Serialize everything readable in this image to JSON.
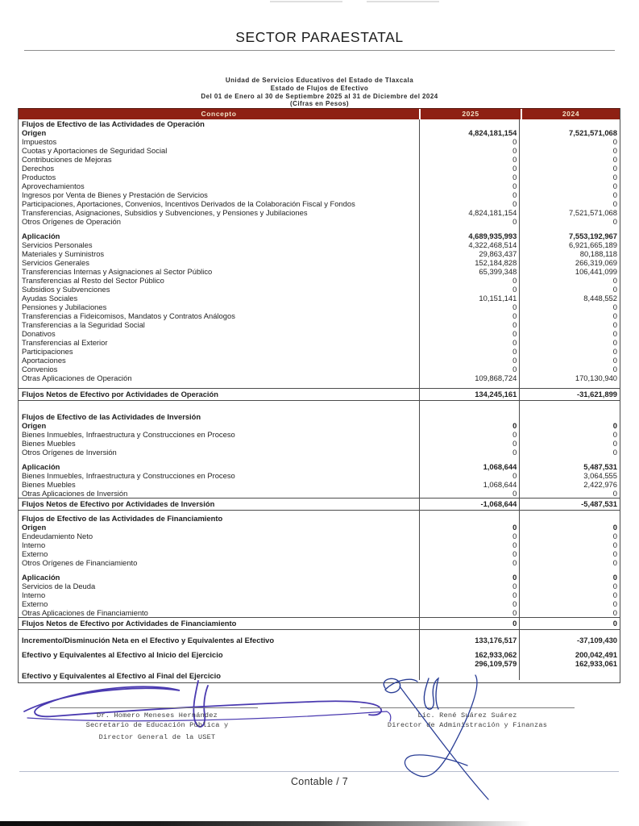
{
  "page": {
    "title": "SECTOR PARAESTATAL",
    "footer": "Contable / 7"
  },
  "report": {
    "entity": "Unidad de Servicios Educativos del Estado de Tlaxcala",
    "statement": "Estado de Flujos de Efectivo",
    "period": "Del 01 de Enero al 30 de Septiembre 2025 al 31 de Diciembre del 2024",
    "units": "(Cifras en Pesos)"
  },
  "table": {
    "headers": {
      "concept": "Concepto",
      "year1": "2025",
      "year2": "2024"
    },
    "header_bg": "#8e2014",
    "header_text_color": "#f2e4c8",
    "rows": [
      {
        "style": "section",
        "label": "Flujos de Efectivo de las Actividades de Operación",
        "v1": "",
        "v2": ""
      },
      {
        "style": "bold",
        "label": "Origen",
        "v1": "4,824,181,154",
        "v2": "7,521,571,068"
      },
      {
        "style": "normal",
        "label": "Impuestos",
        "v1": "0",
        "v2": "0"
      },
      {
        "style": "normal",
        "label": "Cuotas y Aportaciones de Seguridad Social",
        "v1": "0",
        "v2": "0"
      },
      {
        "style": "normal",
        "label": "Contribuciones de Mejoras",
        "v1": "0",
        "v2": "0"
      },
      {
        "style": "normal",
        "label": "Derechos",
        "v1": "0",
        "v2": "0"
      },
      {
        "style": "normal",
        "label": "Productos",
        "v1": "0",
        "v2": "0"
      },
      {
        "style": "normal",
        "label": "Aprovechamientos",
        "v1": "0",
        "v2": "0"
      },
      {
        "style": "normal",
        "label": "Ingresos por Venta de Bienes y Prestación de Servicios",
        "v1": "0",
        "v2": "0"
      },
      {
        "style": "normal",
        "label": "Participaciones, Aportaciones, Convenios, Incentivos Derivados de la Colaboración Fiscal y Fondos",
        "v1": "0",
        "v2": "0"
      },
      {
        "style": "normal",
        "label": "Transferencias, Asignaciones, Subsidios y Subvenciones, y Pensiones y Jubilaciones",
        "v1": "4,824,181,154",
        "v2": "7,521,571,068"
      },
      {
        "style": "normal",
        "label": "Otros Orígenes de Operación",
        "v1": "0",
        "v2": "0"
      },
      {
        "style": "spacer",
        "label": "",
        "v1": "",
        "v2": ""
      },
      {
        "style": "bold",
        "label": "Aplicación",
        "v1": "4,689,935,993",
        "v2": "7,553,192,967"
      },
      {
        "style": "normal",
        "label": "Servicios Personales",
        "v1": "4,322,468,514",
        "v2": "6,921,665,189"
      },
      {
        "style": "normal",
        "label": "Materiales y Suministros",
        "v1": "29,863,437",
        "v2": "80,188,118"
      },
      {
        "style": "normal",
        "label": "Servicios Generales",
        "v1": "152,184,828",
        "v2": "266,319,069"
      },
      {
        "style": "normal",
        "label": "Transferencias Internas y Asignaciones al Sector Público",
        "v1": "65,399,348",
        "v2": "106,441,099"
      },
      {
        "style": "normal",
        "label": "Transferencias al Resto del Sector Público",
        "v1": "0",
        "v2": "0"
      },
      {
        "style": "normal",
        "label": "Subsidios y Subvenciones",
        "v1": "0",
        "v2": "0"
      },
      {
        "style": "normal",
        "label": "Ayudas Sociales",
        "v1": "10,151,141",
        "v2": "8,448,552"
      },
      {
        "style": "normal",
        "label": "Pensiones y Jubilaciones",
        "v1": "0",
        "v2": "0"
      },
      {
        "style": "normal",
        "label": "Transferencias a Fideicomisos, Mandatos y Contratos Análogos",
        "v1": "0",
        "v2": "0"
      },
      {
        "style": "normal",
        "label": "Transferencias a la Seguridad Social",
        "v1": "0",
        "v2": "0"
      },
      {
        "style": "normal",
        "label": "Donativos",
        "v1": "0",
        "v2": "0"
      },
      {
        "style": "normal",
        "label": "Transferencias al Exterior",
        "v1": "0",
        "v2": "0"
      },
      {
        "style": "normal",
        "label": "Participaciones",
        "v1": "0",
        "v2": "0"
      },
      {
        "style": "normal",
        "label": "Aportaciones",
        "v1": "0",
        "v2": "0"
      },
      {
        "style": "normal",
        "label": "Convenios",
        "v1": "0",
        "v2": "0"
      },
      {
        "style": "normal",
        "label": "Otras Aplicaciones de Operación",
        "v1": "109,868,724",
        "v2": "170,130,940"
      },
      {
        "style": "spacer",
        "label": "",
        "v1": "",
        "v2": ""
      },
      {
        "style": "net",
        "label": "Flujos Netos de Efectivo por Actividades de Operación",
        "v1": "134,245,161",
        "v2": "-31,621,899"
      },
      {
        "style": "spacer",
        "label": "",
        "v1": "",
        "v2": ""
      },
      {
        "style": "spacer",
        "label": "",
        "v1": "",
        "v2": ""
      },
      {
        "style": "section",
        "label": "Flujos de Efectivo de las Actividades de Inversión",
        "v1": "",
        "v2": ""
      },
      {
        "style": "bold",
        "label": "Origen",
        "v1": "0",
        "v2": "0"
      },
      {
        "style": "normal",
        "label": "Bienes Inmuebles, Infraestructura y Construcciones en Proceso",
        "v1": "0",
        "v2": "0"
      },
      {
        "style": "normal",
        "label": "Bienes Muebles",
        "v1": "0",
        "v2": "0"
      },
      {
        "style": "normal",
        "label": "Otros Orígenes de Inversión",
        "v1": "0",
        "v2": "0"
      },
      {
        "style": "spacer",
        "label": "",
        "v1": "",
        "v2": ""
      },
      {
        "style": "bold",
        "label": "Aplicación",
        "v1": "1,068,644",
        "v2": "5,487,531"
      },
      {
        "style": "normal",
        "label": "Bienes Inmuebles, Infraestructura y Construcciones en Proceso",
        "v1": "0",
        "v2": "3,064,555"
      },
      {
        "style": "normal",
        "label": "Bienes Muebles",
        "v1": "1,068,644",
        "v2": "2,422,976"
      },
      {
        "style": "normal",
        "label": "Otras Aplicaciones de Inversión",
        "v1": "0",
        "v2": "0"
      },
      {
        "style": "net",
        "label": "Flujos Netos de Efectivo por Actividades de Inversión",
        "v1": "-1,068,644",
        "v2": "-5,487,531"
      },
      {
        "style": "spacer-sm",
        "label": "",
        "v1": "",
        "v2": ""
      },
      {
        "style": "section",
        "label": "Flujos de Efectivo de las Actividades de Financiamiento",
        "v1": "",
        "v2": ""
      },
      {
        "style": "bold",
        "label": "Origen",
        "v1": "0",
        "v2": "0"
      },
      {
        "style": "normal",
        "label": "Endeudamiento Neto",
        "v1": "0",
        "v2": "0"
      },
      {
        "style": "normal",
        "label": "Interno",
        "v1": "0",
        "v2": "0"
      },
      {
        "style": "normal",
        "label": "Externo",
        "v1": "0",
        "v2": "0"
      },
      {
        "style": "normal",
        "label": "Otros Orígenes de Financiamiento",
        "v1": "0",
        "v2": "0"
      },
      {
        "style": "spacer",
        "label": "",
        "v1": "",
        "v2": ""
      },
      {
        "style": "bold",
        "label": "Aplicación",
        "v1": "0",
        "v2": "0"
      },
      {
        "style": "normal",
        "label": "Servicios de la Deuda",
        "v1": "0",
        "v2": "0"
      },
      {
        "style": "normal",
        "label": "Interno",
        "v1": "0",
        "v2": "0"
      },
      {
        "style": "normal",
        "label": "Externo",
        "v1": "0",
        "v2": "0"
      },
      {
        "style": "normal",
        "label": "Otras Aplicaciones de Financiamiento",
        "v1": "0",
        "v2": "0"
      },
      {
        "style": "net",
        "label": "Flujos Netos de Efectivo por Actividades de Financiamiento",
        "v1": "0",
        "v2": "0"
      },
      {
        "style": "spacer",
        "label": "",
        "v1": "",
        "v2": ""
      },
      {
        "style": "bold",
        "label": "Incremento/Disminución Neta en el Efectivo y Equivalentes al Efectivo",
        "v1": "133,176,517",
        "v2": "-37,109,430"
      },
      {
        "style": "spacer",
        "label": "",
        "v1": "",
        "v2": ""
      },
      {
        "style": "bold",
        "label": "Efectivo y Equivalentes al Efectivo al Inicio del Ejercicio",
        "v1": "162,933,062",
        "v2": "200,042,491"
      },
      {
        "style": "values",
        "label": "",
        "v1": "296,109,579",
        "v2": "162,933,061"
      },
      {
        "style": "spacer-sm",
        "label": "",
        "v1": "",
        "v2": ""
      },
      {
        "style": "endlabel",
        "label": "Efectivo y Equivalentes al Efectivo al Final del Ejercicio",
        "v1": "",
        "v2": ""
      }
    ]
  },
  "signatures": {
    "left": {
      "name": "Dr. Homero Meneses Hernández",
      "title1": "Secretario de Educación Pública y",
      "title2": "Director General de la USET",
      "ink_color": "#4a3ab0"
    },
    "right": {
      "name": "Lic. René Suárez Suárez",
      "title1": "Director de Administración y Finanzas",
      "ink_color": "#2b3f96"
    }
  }
}
